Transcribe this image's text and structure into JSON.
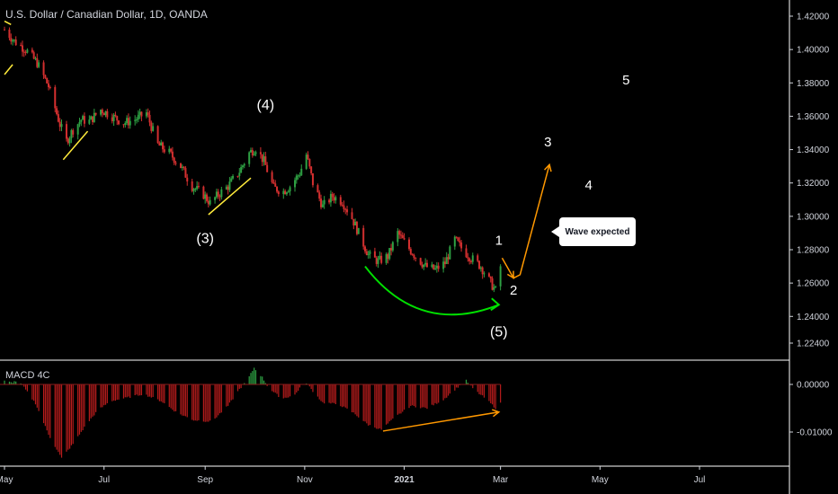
{
  "header": {
    "title": "U.S. Dollar / Canadian Dollar, 1D, OANDA"
  },
  "macd": {
    "title": "MACD 4C"
  },
  "callout": {
    "text": "Wave expected"
  },
  "colors": {
    "background": "#000000",
    "up": "#2ea043",
    "down": "#d32f2f",
    "yellow_lines": "#ffeb3b",
    "green_arc": "#00e000",
    "orange": "#ff9800",
    "axis_text": "#d1d4dc",
    "macd_pos": "#2ea043",
    "macd_neg": "#b71c1c"
  },
  "chart_data": [
    {
      "type": "candlestick",
      "title": "U.S. Dollar / Canadian Dollar, 1D, OANDA",
      "ylim": [
        1.215,
        1.425
      ],
      "y_ticks": [
        "1.42000",
        "1.40000",
        "1.38000",
        "1.36000",
        "1.34000",
        "1.32000",
        "1.30000",
        "1.28000",
        "1.26000",
        "1.24000",
        "1.22400"
      ],
      "x_ticks": [
        "May",
        "Jul",
        "Sep",
        "Nov",
        "2021",
        "Mar",
        "May",
        "Jul"
      ],
      "x_range": [
        "2020-05-01",
        "2021-08-15"
      ],
      "close_path": [
        {
          "x": "2020-05-01",
          "y": 1.412
        },
        {
          "x": "2020-05-07",
          "y": 1.405
        },
        {
          "x": "2020-05-14",
          "y": 1.4
        },
        {
          "x": "2020-05-21",
          "y": 1.392
        },
        {
          "x": "2020-05-28",
          "y": 1.378
        },
        {
          "x": "2020-06-04",
          "y": 1.355
        },
        {
          "x": "2020-06-08",
          "y": 1.345
        },
        {
          "x": "2020-06-12",
          "y": 1.352
        },
        {
          "x": "2020-06-17",
          "y": 1.358
        },
        {
          "x": "2020-06-22",
          "y": 1.357
        },
        {
          "x": "2020-06-29",
          "y": 1.364
        },
        {
          "x": "2020-07-06",
          "y": 1.36
        },
        {
          "x": "2020-07-13",
          "y": 1.356
        },
        {
          "x": "2020-07-20",
          "y": 1.358
        },
        {
          "x": "2020-07-27",
          "y": 1.362
        },
        {
          "x": "2020-08-03",
          "y": 1.343
        },
        {
          "x": "2020-08-10",
          "y": 1.338
        },
        {
          "x": "2020-08-17",
          "y": 1.33
        },
        {
          "x": "2020-08-24",
          "y": 1.318
        },
        {
          "x": "2020-08-31",
          "y": 1.313
        },
        {
          "x": "2020-09-04",
          "y": 1.308
        },
        {
          "x": "2020-09-09",
          "y": 1.313
        },
        {
          "x": "2020-09-15",
          "y": 1.318
        },
        {
          "x": "2020-09-22",
          "y": 1.327
        },
        {
          "x": "2020-09-28",
          "y": 1.338
        },
        {
          "x": "2020-10-02",
          "y": 1.341
        },
        {
          "x": "2020-10-07",
          "y": 1.333
        },
        {
          "x": "2020-10-13",
          "y": 1.317
        },
        {
          "x": "2020-10-19",
          "y": 1.315
        },
        {
          "x": "2020-10-23",
          "y": 1.318
        },
        {
          "x": "2020-10-29",
          "y": 1.326
        },
        {
          "x": "2020-11-02",
          "y": 1.337
        },
        {
          "x": "2020-11-06",
          "y": 1.32
        },
        {
          "x": "2020-11-12",
          "y": 1.306
        },
        {
          "x": "2020-11-18",
          "y": 1.312
        },
        {
          "x": "2020-11-24",
          "y": 1.309
        },
        {
          "x": "2020-11-30",
          "y": 1.299
        },
        {
          "x": "2020-12-04",
          "y": 1.29
        },
        {
          "x": "2020-12-10",
          "y": 1.277
        },
        {
          "x": "2020-12-16",
          "y": 1.273
        },
        {
          "x": "2020-12-22",
          "y": 1.276
        },
        {
          "x": "2020-12-28",
          "y": 1.29
        },
        {
          "x": "2021-01-02",
          "y": 1.283
        },
        {
          "x": "2021-01-08",
          "y": 1.276
        },
        {
          "x": "2021-01-14",
          "y": 1.27
        },
        {
          "x": "2021-01-20",
          "y": 1.268
        },
        {
          "x": "2021-01-26",
          "y": 1.272
        },
        {
          "x": "2021-02-01",
          "y": 1.286
        },
        {
          "x": "2021-02-05",
          "y": 1.281
        },
        {
          "x": "2021-02-11",
          "y": 1.275
        },
        {
          "x": "2021-02-17",
          "y": 1.27
        },
        {
          "x": "2021-02-23",
          "y": 1.26
        },
        {
          "x": "2021-02-27",
          "y": 1.254
        },
        {
          "x": "2021-03-01",
          "y": 1.27
        }
      ],
      "annotations": {
        "wave_labels": [
          {
            "text": "(3)",
            "x": "2020-09-01",
            "y": 1.284
          },
          {
            "text": "(4)",
            "x": "2020-10-08",
            "y": 1.364
          },
          {
            "text": "(5)",
            "x": "2021-02-28",
            "y": 1.228
          },
          {
            "text": "1",
            "x": "2021-02-28",
            "y": 1.283
          },
          {
            "text": "2",
            "x": "2021-03-09",
            "y": 1.253
          },
          {
            "text": "3",
            "x": "2021-03-30",
            "y": 1.342
          },
          {
            "text": "4",
            "x": "2021-04-24",
            "y": 1.316
          },
          {
            "text": "5",
            "x": "2021-05-17",
            "y": 1.379
          }
        ],
        "yellow_trendlines": [
          [
            {
              "x": "2020-05-01",
              "y": 1.385
            },
            {
              "x": "2020-05-06",
              "y": 1.391
            }
          ],
          [
            {
              "x": "2020-06-06",
              "y": 1.334
            },
            {
              "x": "2020-06-21",
              "y": 1.351
            }
          ],
          [
            {
              "x": "2020-09-03",
              "y": 1.301
            },
            {
              "x": "2020-09-29",
              "y": 1.323
            }
          ],
          [
            {
              "x": "2020-05-01",
              "y": 1.417
            },
            {
              "x": "2020-05-05",
              "y": 1.415
            }
          ]
        ],
        "projection": [
          {
            "x": "2021-03-02",
            "y": 1.275
          },
          {
            "x": "2021-03-09",
            "y": 1.263
          },
          {
            "x": "2021-03-13",
            "y": 1.265
          },
          {
            "x": "2021-03-31",
            "y": 1.331
          }
        ]
      }
    },
    {
      "type": "bar",
      "title": "MACD 4C",
      "ylim": [
        -0.015,
        0.0045
      ],
      "y_ticks": [
        "0.00000",
        "-0.01000"
      ],
      "histogram_path": [
        {
          "x": "2020-05-01",
          "y": 0.0007
        },
        {
          "x": "2020-05-05",
          "y": 0.0004
        },
        {
          "x": "2020-05-08",
          "y": 0.0007
        },
        {
          "x": "2020-05-12",
          "y": -0.0002
        },
        {
          "x": "2020-05-20",
          "y": -0.004
        },
        {
          "x": "2020-05-28",
          "y": -0.0105
        },
        {
          "x": "2020-06-05",
          "y": -0.0155
        },
        {
          "x": "2020-06-12",
          "y": -0.0125
        },
        {
          "x": "2020-06-20",
          "y": -0.0085
        },
        {
          "x": "2020-06-27",
          "y": -0.0055
        },
        {
          "x": "2020-07-05",
          "y": -0.0035
        },
        {
          "x": "2020-07-15",
          "y": -0.0028
        },
        {
          "x": "2020-07-25",
          "y": -0.002
        },
        {
          "x": "2020-08-05",
          "y": -0.0035
        },
        {
          "x": "2020-08-15",
          "y": -0.006
        },
        {
          "x": "2020-08-25",
          "y": -0.0075
        },
        {
          "x": "2020-09-05",
          "y": -0.0078
        },
        {
          "x": "2020-09-15",
          "y": -0.0045
        },
        {
          "x": "2020-09-22",
          "y": -0.001
        },
        {
          "x": "2020-09-27",
          "y": 0.001
        },
        {
          "x": "2020-10-01",
          "y": 0.0035
        },
        {
          "x": "2020-10-06",
          "y": 0.0015
        },
        {
          "x": "2020-10-10",
          "y": -0.0008
        },
        {
          "x": "2020-10-18",
          "y": -0.003
        },
        {
          "x": "2020-10-26",
          "y": -0.0022
        },
        {
          "x": "2020-11-01",
          "y": 0.0008
        },
        {
          "x": "2020-11-05",
          "y": -0.001
        },
        {
          "x": "2020-11-12",
          "y": -0.0038
        },
        {
          "x": "2020-11-22",
          "y": -0.0042
        },
        {
          "x": "2020-12-01",
          "y": -0.006
        },
        {
          "x": "2020-12-10",
          "y": -0.0085
        },
        {
          "x": "2020-12-18",
          "y": -0.0095
        },
        {
          "x": "2020-12-26",
          "y": -0.007
        },
        {
          "x": "2021-01-05",
          "y": -0.0045
        },
        {
          "x": "2021-01-15",
          "y": -0.005
        },
        {
          "x": "2021-01-25",
          "y": -0.0032
        },
        {
          "x": "2021-02-03",
          "y": -0.0005
        },
        {
          "x": "2021-02-08",
          "y": 0.0008
        },
        {
          "x": "2021-02-13",
          "y": -0.0012
        },
        {
          "x": "2021-02-20",
          "y": -0.003
        },
        {
          "x": "2021-02-26",
          "y": -0.005
        },
        {
          "x": "2021-03-01",
          "y": -0.004
        }
      ],
      "annotations": {
        "orange_divergence": [
          {
            "x": "2020-12-19",
            "y": -0.0098
          },
          {
            "x": "2021-02-28",
            "y": -0.0058
          }
        ]
      }
    }
  ]
}
